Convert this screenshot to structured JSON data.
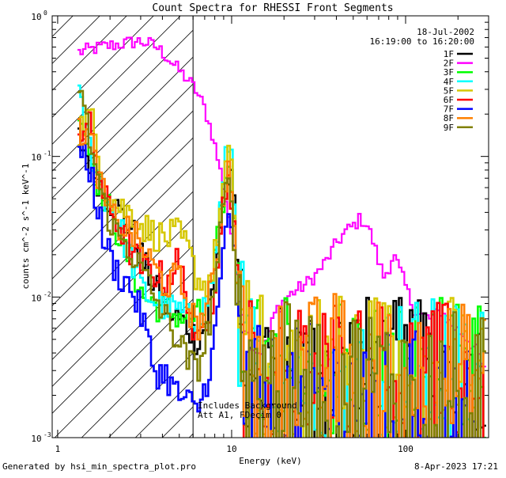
{
  "chart_data": {
    "type": "line",
    "title": "Count Spectra for RHESSI Front Segments",
    "xlabel": "Energy (keV)",
    "ylabel": "counts cm^-2 s^-1 keV^-1",
    "xscale": "log",
    "yscale": "log",
    "xlim": [
      1.25,
      300
    ],
    "ylim": [
      0.001,
      1
    ],
    "x_ticks": [
      {
        "value": 1,
        "label": "1"
      },
      {
        "value": 10,
        "label": "10"
      },
      {
        "value": 100,
        "label": "100"
      }
    ],
    "y_ticks": [
      {
        "value": 0.001,
        "label": "10",
        "exp": "-3"
      },
      {
        "value": 0.01,
        "label": "10",
        "exp": "-2"
      },
      {
        "value": 0.1,
        "label": "10",
        "exp": "-1"
      },
      {
        "value": 1,
        "label": "10",
        "exp": "0"
      }
    ],
    "legend": {
      "date": "18-Jul-2002",
      "time_range": "16:19:00 to 16:20:00",
      "entries": [
        {
          "name": "1F",
          "color": "#000000"
        },
        {
          "name": "2F",
          "color": "#ff00ff"
        },
        {
          "name": "3F",
          "color": "#00ff00"
        },
        {
          "name": "4F",
          "color": "#00ffff"
        },
        {
          "name": "5F",
          "color": "#d6c800"
        },
        {
          "name": "6F",
          "color": "#ff0000"
        },
        {
          "name": "7F",
          "color": "#0000ff"
        },
        {
          "name": "8F",
          "color": "#ff8000"
        },
        {
          "name": "9F",
          "color": "#808000"
        }
      ]
    },
    "shaded_region": {
      "x": [
        1.25,
        6.0
      ],
      "label": "attenuated low-energy region (hatched)"
    },
    "annotations": [
      "Includes Background",
      "Att A1, FDecim 0"
    ],
    "series": [
      {
        "name": "2F",
        "color": "#ff00ff",
        "x": [
          1.3,
          1.5,
          1.8,
          2.1,
          2.5,
          2.9,
          3.3,
          3.7,
          4.2,
          4.8,
          5.5,
          6.2,
          7.0,
          7.8,
          8.6,
          9.4,
          10.0,
          10.5,
          11.2,
          12.0,
          13.0,
          14.5,
          16.0,
          18.0,
          20.0,
          23.0,
          26.0,
          30.0,
          35.0,
          40.0,
          45.0,
          50.0,
          55.0,
          60.0,
          65.0,
          70.0,
          75.0,
          80.0,
          85.0,
          90.0,
          100.0,
          110.0,
          120.0,
          140.0,
          160.0,
          180.0,
          200.0,
          230.0,
          260.0,
          290.0
        ],
        "values": [
          0.55,
          0.57,
          0.6,
          0.62,
          0.64,
          0.66,
          0.64,
          0.6,
          0.52,
          0.43,
          0.36,
          0.3,
          0.22,
          0.14,
          0.08,
          0.045,
          0.028,
          0.018,
          0.0095,
          0.006,
          0.0045,
          0.004,
          0.005,
          0.008,
          0.0095,
          0.011,
          0.012,
          0.014,
          0.018,
          0.024,
          0.029,
          0.032,
          0.036,
          0.033,
          0.025,
          0.018,
          0.014,
          0.016,
          0.02,
          0.017,
          0.012,
          0.0085,
          0.0075,
          0.007,
          0.008,
          0.0065,
          0.0058,
          0.005,
          0.004,
          0.0028
        ]
      },
      {
        "name": "1F",
        "color": "#000000",
        "x": [
          1.3,
          1.55,
          1.85,
          2.2,
          2.6,
          3.1,
          3.6,
          4.2,
          4.9,
          5.6,
          6.3,
          7.0,
          7.8,
          8.5,
          9.2,
          9.8,
          10.3,
          11.0,
          12.0,
          14.0,
          17.0,
          20.0,
          25.0,
          30.0,
          40.0,
          50.0,
          60.0,
          80.0,
          100.0,
          130.0,
          170.0,
          220.0,
          290.0
        ],
        "values": [
          0.14,
          0.09,
          0.055,
          0.042,
          0.032,
          0.018,
          0.012,
          0.0085,
          0.007,
          0.0062,
          0.005,
          0.006,
          0.011,
          0.028,
          0.06,
          0.075,
          0.045,
          0.009,
          0.004,
          0.0032,
          0.0028,
          0.003,
          0.0026,
          0.0031,
          0.0029,
          0.0033,
          0.003,
          0.0027,
          0.003,
          0.0026,
          0.0028,
          0.0025,
          0.0024
        ]
      },
      {
        "name": "3F",
        "color": "#00ff00",
        "x": [
          1.3,
          1.55,
          1.85,
          2.2,
          2.6,
          3.1,
          3.6,
          4.2,
          4.9,
          5.6,
          6.3,
          7.0,
          7.8,
          8.5,
          9.2,
          9.8,
          10.3,
          11.0,
          12.0,
          14.0,
          17.0,
          20.0,
          25.0,
          30.0,
          40.0,
          50.0,
          60.0,
          80.0,
          100.0,
          130.0,
          170.0,
          220.0,
          290.0
        ],
        "values": [
          0.26,
          0.1,
          0.05,
          0.03,
          0.018,
          0.01,
          0.009,
          0.008,
          0.0075,
          0.007,
          0.0072,
          0.008,
          0.013,
          0.03,
          0.065,
          0.08,
          0.04,
          0.008,
          0.0035,
          0.003,
          0.0027,
          0.0031,
          0.0028,
          0.003,
          0.0032,
          0.0029,
          0.0031,
          0.0028,
          0.0029,
          0.0027,
          0.0029,
          0.0026,
          0.0025
        ]
      },
      {
        "name": "4F",
        "color": "#00ffff",
        "x": [
          1.3,
          1.55,
          1.85,
          2.2,
          2.6,
          3.1,
          3.6,
          4.2,
          4.9,
          5.6,
          6.3,
          7.0,
          7.8,
          8.5,
          9.2,
          9.8,
          10.3,
          11.0,
          12.0,
          14.0,
          17.0,
          20.0,
          25.0,
          30.0,
          40.0,
          50.0,
          60.0,
          80.0,
          100.0,
          130.0,
          170.0,
          220.0,
          290.0
        ],
        "values": [
          0.28,
          0.11,
          0.055,
          0.035,
          0.02,
          0.011,
          0.0095,
          0.0085,
          0.008,
          0.0072,
          0.007,
          0.0085,
          0.014,
          0.035,
          0.085,
          0.15,
          0.05,
          0.0085,
          0.0036,
          0.0031,
          0.0028,
          0.0032,
          0.0029,
          0.0031,
          0.0033,
          0.003,
          0.0032,
          0.0029,
          0.003,
          0.0028,
          0.003,
          0.0027,
          0.0026
        ]
      },
      {
        "name": "5F",
        "color": "#d6c800",
        "x": [
          1.3,
          1.55,
          1.85,
          2.2,
          2.6,
          3.1,
          3.6,
          4.2,
          4.9,
          5.6,
          6.3,
          7.0,
          7.8,
          8.5,
          9.2,
          9.8,
          10.3,
          11.0,
          12.0,
          14.0,
          17.0,
          20.0,
          25.0,
          30.0,
          40.0,
          50.0,
          60.0,
          80.0,
          100.0,
          130.0,
          170.0,
          220.0,
          290.0
        ],
        "values": [
          0.15,
          0.2,
          0.06,
          0.045,
          0.04,
          0.032,
          0.028,
          0.026,
          0.028,
          0.022,
          0.014,
          0.012,
          0.015,
          0.035,
          0.08,
          0.1,
          0.045,
          0.009,
          0.0042,
          0.0033,
          0.003,
          0.0034,
          0.0031,
          0.0033,
          0.0035,
          0.0032,
          0.0034,
          0.0031,
          0.0032,
          0.003,
          0.0031,
          0.0028,
          0.0027
        ]
      },
      {
        "name": "6F",
        "color": "#ff0000",
        "x": [
          1.3,
          1.55,
          1.85,
          2.2,
          2.6,
          3.1,
          3.6,
          4.2,
          4.9,
          5.6,
          6.3,
          7.0,
          7.8,
          8.5,
          9.2,
          9.8,
          10.3,
          11.0,
          12.0,
          14.0,
          17.0,
          20.0,
          25.0,
          30.0,
          40.0,
          50.0,
          60.0,
          80.0,
          100.0,
          130.0,
          170.0,
          220.0,
          290.0
        ],
        "values": [
          0.15,
          0.16,
          0.05,
          0.035,
          0.022,
          0.016,
          0.015,
          0.013,
          0.018,
          0.01,
          0.004,
          0.0065,
          0.01,
          0.025,
          0.06,
          0.07,
          0.035,
          0.007,
          0.0032,
          0.0028,
          0.0026,
          0.0029,
          0.0027,
          0.0029,
          0.0031,
          0.0028,
          0.003,
          0.0027,
          0.0028,
          0.0026,
          0.0027,
          0.0025,
          0.0023
        ]
      },
      {
        "name": "7F",
        "color": "#0000ff",
        "x": [
          1.3,
          1.55,
          1.85,
          2.2,
          2.6,
          3.1,
          3.6,
          4.2,
          4.9,
          5.6,
          6.3,
          7.0,
          7.8,
          8.5,
          9.2,
          9.8,
          10.3,
          11.0,
          12.0,
          14.0,
          17.0,
          20.0,
          25.0,
          30.0,
          40.0,
          50.0,
          60.0,
          80.0,
          100.0,
          130.0,
          170.0,
          220.0,
          290.0
        ],
        "values": [
          0.11,
          0.08,
          0.025,
          0.015,
          0.012,
          0.007,
          0.003,
          0.0028,
          0.002,
          0.0018,
          0.0015,
          0.0022,
          0.004,
          0.01,
          0.03,
          0.045,
          0.02,
          0.004,
          0.002,
          0.0018,
          0.0016,
          0.0019,
          0.0017,
          0.0019,
          0.002,
          0.0018,
          0.0019,
          0.0017,
          0.0018,
          0.0016,
          0.0017,
          0.0015,
          0.0014
        ]
      },
      {
        "name": "8F",
        "color": "#ff8000",
        "x": [
          1.3,
          1.55,
          1.85,
          2.2,
          2.6,
          3.1,
          3.6,
          4.2,
          4.9,
          5.6,
          6.3,
          7.0,
          7.8,
          8.5,
          9.2,
          9.8,
          10.3,
          11.0,
          12.0,
          14.0,
          17.0,
          20.0,
          25.0,
          30.0,
          40.0,
          50.0,
          60.0,
          80.0,
          100.0,
          130.0,
          170.0,
          220.0,
          290.0
        ],
        "values": [
          0.17,
          0.13,
          0.05,
          0.032,
          0.03,
          0.022,
          0.016,
          0.012,
          0.014,
          0.009,
          0.006,
          0.0075,
          0.012,
          0.028,
          0.07,
          0.085,
          0.04,
          0.008,
          0.0036,
          0.003,
          0.0028,
          0.0031,
          0.0029,
          0.003,
          0.0032,
          0.0029,
          0.0031,
          0.0028,
          0.0029,
          0.0027,
          0.0028,
          0.0026,
          0.0024
        ]
      },
      {
        "name": "9F",
        "color": "#808000",
        "x": [
          1.3,
          1.55,
          1.85,
          2.2,
          2.6,
          3.1,
          3.6,
          4.2,
          4.9,
          5.6,
          6.3,
          7.0,
          7.8,
          8.5,
          9.2,
          9.8,
          10.3,
          11.0,
          12.0,
          14.0,
          17.0,
          20.0,
          25.0,
          30.0,
          40.0,
          50.0,
          60.0,
          80.0,
          100.0,
          130.0,
          170.0,
          220.0,
          290.0
        ],
        "values": [
          0.38,
          0.12,
          0.045,
          0.028,
          0.022,
          0.015,
          0.01,
          0.007,
          0.005,
          0.0035,
          0.003,
          0.0045,
          0.009,
          0.022,
          0.055,
          0.06,
          0.03,
          0.006,
          0.003,
          0.0026,
          0.0024,
          0.0027,
          0.0025,
          0.0026,
          0.0028,
          0.0025,
          0.0027,
          0.0024,
          0.0025,
          0.0023,
          0.0024,
          0.0022,
          0.0021
        ]
      }
    ]
  },
  "footer": {
    "generated_by": "Generated by hsi_min_spectra_plot.pro",
    "timestamp": "8-Apr-2023 17:21"
  }
}
